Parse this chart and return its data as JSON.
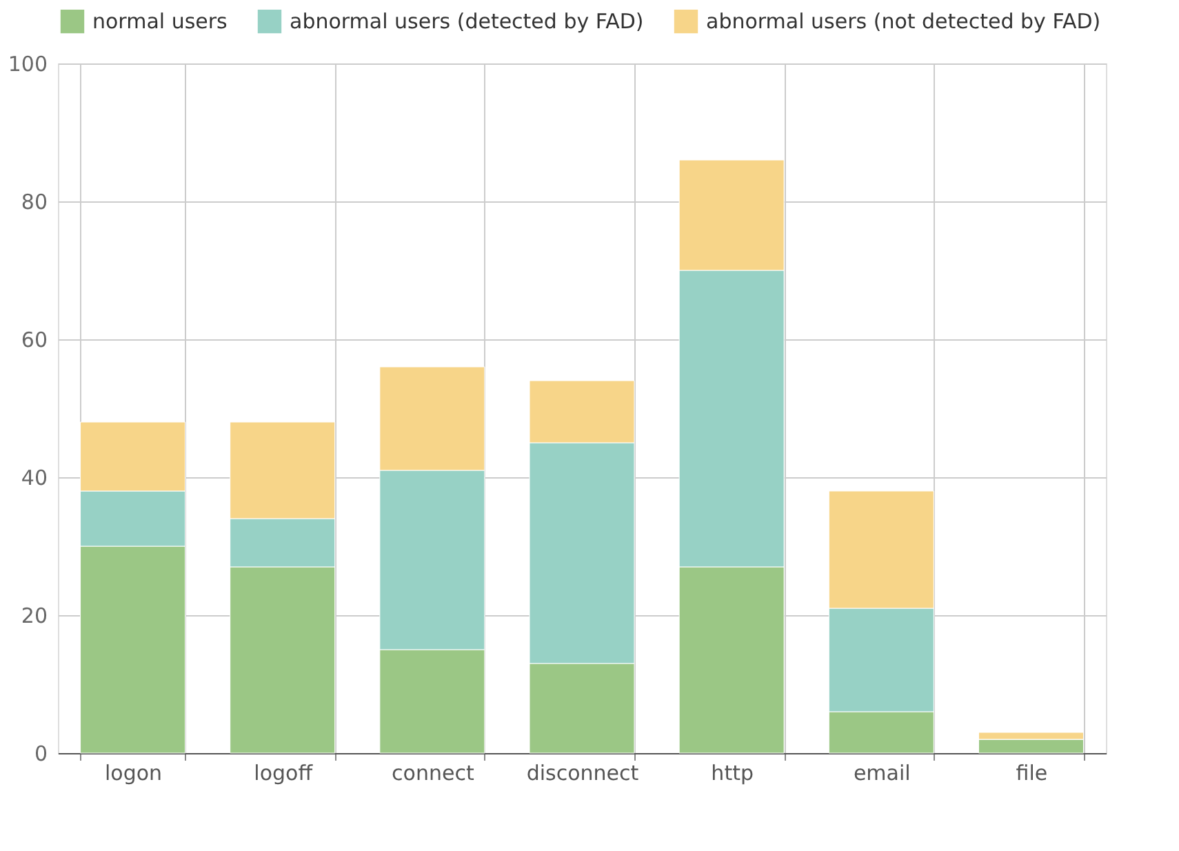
{
  "chart_data": {
    "type": "bar",
    "stacked": true,
    "categories": [
      "logon",
      "logoff",
      "connect",
      "disconnect",
      "http",
      "email",
      "file"
    ],
    "series": [
      {
        "name": "normal users",
        "color": "#9bc785",
        "values": [
          30,
          27,
          15,
          13,
          27,
          6,
          2
        ]
      },
      {
        "name": "abnormal users (detected by FAD)",
        "color": "#97d1c5",
        "values": [
          8,
          7,
          26,
          32,
          43,
          15,
          0
        ]
      },
      {
        "name": "abnormal users (not detected by FAD)",
        "color": "#f7d589",
        "values": [
          10,
          14,
          15,
          9,
          16,
          17,
          1
        ]
      }
    ],
    "ylim": [
      0,
      100
    ],
    "yticks": [
      0,
      20,
      40,
      60,
      80,
      100
    ],
    "grid": true,
    "legend": "top"
  }
}
